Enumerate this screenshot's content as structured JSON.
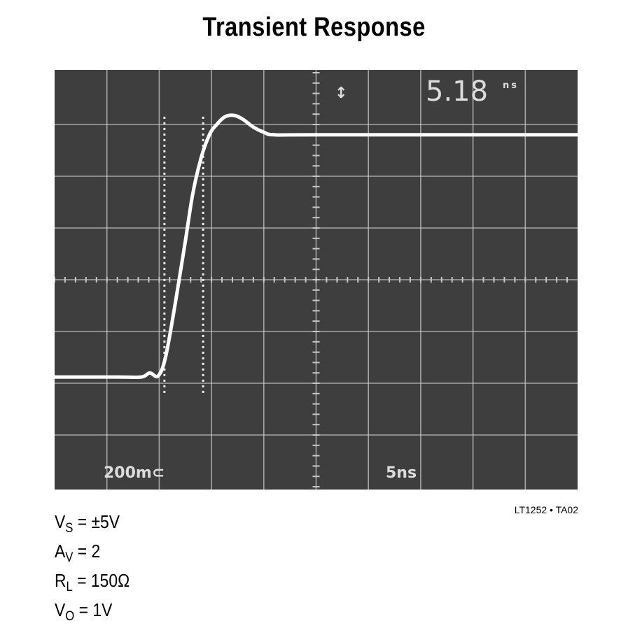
{
  "title": "Transient Response",
  "figure_id": "LT1252 • TA02",
  "conditions": [
    {
      "sym": "V",
      "sub": "S",
      "rest": " = ±5V"
    },
    {
      "sym": "A",
      "sub": "V",
      "rest": " = 2"
    },
    {
      "sym": "R",
      "sub": "L",
      "rest": " = 150Ω"
    },
    {
      "sym": "V",
      "sub": "O",
      "rest": " = 1V"
    }
  ],
  "scope": {
    "readout": "5.18",
    "readout_unit": "ns",
    "volts_per_div": "200m⊂",
    "time_per_div": "5ns",
    "colors": {
      "screen": "#3e3e3e",
      "grid": "#c8c8c8",
      "trace": "#ffffff",
      "text": "#dcdcdc"
    }
  },
  "chart_data": {
    "type": "line",
    "x_unit": "ns",
    "y_unit": "V",
    "xlim": [
      0,
      50
    ],
    "ylim": [
      -0.8,
      0.8
    ],
    "grid": true,
    "x_divisions": 10,
    "y_divisions": 8,
    "cursors_x": [
      10.5,
      14.2
    ],
    "series": [
      {
        "values": [
          [
            0,
            -0.376
          ],
          [
            6,
            -0.376
          ],
          [
            8.3,
            -0.376
          ],
          [
            9.1,
            -0.36
          ],
          [
            9.9,
            -0.372
          ],
          [
            10.6,
            -0.3
          ],
          [
            11.5,
            -0.1
          ],
          [
            12.5,
            0.15
          ],
          [
            13.2,
            0.33
          ],
          [
            14,
            0.47
          ],
          [
            14.8,
            0.56
          ],
          [
            15.5,
            0.6
          ],
          [
            16.3,
            0.63
          ],
          [
            17.2,
            0.635
          ],
          [
            18,
            0.62
          ],
          [
            19,
            0.59
          ],
          [
            20,
            0.57
          ],
          [
            21,
            0.56
          ],
          [
            25,
            0.56
          ],
          [
            50,
            0.56
          ]
        ]
      }
    ]
  }
}
